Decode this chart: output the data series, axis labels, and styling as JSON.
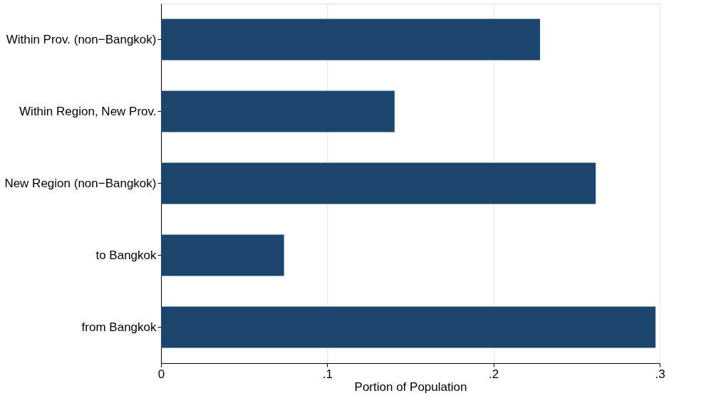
{
  "chart_data": {
    "type": "bar",
    "orientation": "horizontal",
    "categories": [
      "Within Prov. (non−Bangkok)",
      "Within Region, New Prov.",
      "New Region (non−Bangkok)",
      "to Bangkok",
      "from Bangkok"
    ],
    "values": [
      0.228,
      0.1405,
      0.2615,
      0.074,
      0.2975
    ],
    "color": "#1c466e",
    "xlabel": "Portion of Population",
    "xlim": [
      0,
      0.3
    ],
    "xticks": [
      0,
      {
        "value": 0.1,
        "label": ".1"
      },
      {
        "value": 0.2,
        "label": ".2"
      },
      {
        "value": 0.3,
        "label": ".3"
      }
    ],
    "grid": "x"
  }
}
